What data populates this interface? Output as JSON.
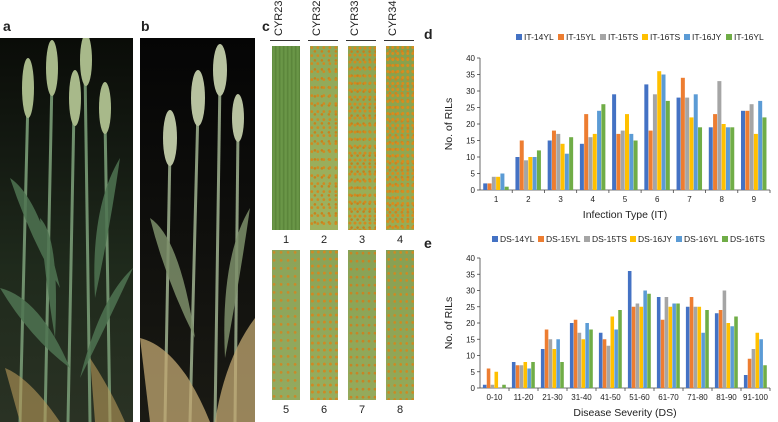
{
  "panels": {
    "a": "a",
    "b": "b",
    "c": "c",
    "d": "d",
    "e": "e"
  },
  "panel_c": {
    "strains": [
      "CYR23",
      "CYR32",
      "CYR33",
      "CYR34"
    ],
    "leaf_numbers_top": [
      "1",
      "2",
      "3",
      "4"
    ],
    "leaf_numbers_bottom": [
      "5",
      "6",
      "7",
      "8"
    ]
  },
  "colors": {
    "c1": "#4472c4",
    "c2": "#ed7d31",
    "c3": "#a5a5a5",
    "c4": "#ffc000",
    "c5": "#5b9bd5",
    "c6": "#70ad47"
  },
  "chart_data": [
    {
      "id": "d",
      "type": "bar",
      "title": "",
      "xlabel": "Infection Type (IT)",
      "ylabel": "No. of RILs",
      "ylim": [
        0,
        40
      ],
      "yticks": [
        0,
        5,
        10,
        15,
        20,
        25,
        30,
        35,
        40
      ],
      "categories": [
        "1",
        "2",
        "3",
        "4",
        "5",
        "6",
        "7",
        "8",
        "9"
      ],
      "legend_position": "top",
      "series": [
        {
          "name": "IT-14YL",
          "color": "#4472c4",
          "values": [
            2,
            10,
            15,
            14,
            29,
            32,
            28,
            19,
            24
          ]
        },
        {
          "name": "IT-15YL",
          "color": "#ed7d31",
          "values": [
            2,
            15,
            18,
            23,
            17,
            18,
            34,
            23,
            24
          ]
        },
        {
          "name": "IT-15TS",
          "color": "#a5a5a5",
          "values": [
            4,
            9,
            17,
            16,
            18,
            29,
            28,
            33,
            26
          ]
        },
        {
          "name": "IT-16TS",
          "color": "#ffc000",
          "values": [
            4,
            10,
            14,
            17,
            23,
            36,
            22,
            20,
            17
          ]
        },
        {
          "name": "IT-16JY",
          "color": "#5b9bd5",
          "values": [
            5,
            10,
            11,
            24,
            17,
            35,
            29,
            19,
            27
          ]
        },
        {
          "name": "IT-16YL",
          "color": "#70ad47",
          "values": [
            1,
            12,
            16,
            26,
            15,
            27,
            19,
            19,
            22
          ]
        }
      ]
    },
    {
      "id": "e",
      "type": "bar",
      "title": "",
      "xlabel": "Disease Severity (DS)",
      "ylabel": "No. of RILs",
      "ylim": [
        0,
        40
      ],
      "yticks": [
        0,
        5,
        10,
        15,
        20,
        25,
        30,
        35,
        40
      ],
      "categories": [
        "0-10",
        "11-20",
        "21-30",
        "31-40",
        "41-50",
        "51-60",
        "61-70",
        "71-80",
        "81-90",
        "91-100"
      ],
      "legend_position": "top",
      "series": [
        {
          "name": "DS-14YL",
          "color": "#4472c4",
          "values": [
            1,
            8,
            12,
            20,
            17,
            36,
            28,
            25,
            23,
            4
          ]
        },
        {
          "name": "DS-15YL",
          "color": "#ed7d31",
          "values": [
            6,
            7,
            18,
            21,
            15,
            25,
            21,
            28,
            24,
            9
          ]
        },
        {
          "name": "DS-15TS",
          "color": "#a5a5a5",
          "values": [
            1,
            7,
            15,
            17,
            13,
            26,
            28,
            25,
            30,
            12
          ]
        },
        {
          "name": "DS-16JY",
          "color": "#ffc000",
          "values": [
            5,
            8,
            12,
            15,
            22,
            25,
            25,
            25,
            20,
            17
          ]
        },
        {
          "name": "DS-16YL",
          "color": "#5b9bd5",
          "values": [
            0,
            6,
            15,
            20,
            18,
            30,
            26,
            17,
            19,
            15
          ]
        },
        {
          "name": "DS-16TS",
          "color": "#70ad47",
          "values": [
            1,
            8,
            8,
            18,
            24,
            29,
            26,
            24,
            22,
            7
          ]
        }
      ]
    }
  ]
}
